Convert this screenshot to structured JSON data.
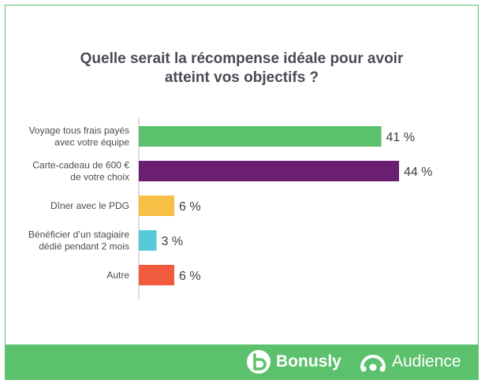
{
  "title_lines": [
    "Quelle serait la récompense idéale pour avoir",
    "atteint vos objectifs ?"
  ],
  "brands": {
    "bonusly": "Bonusly",
    "audience": "Audience"
  },
  "chart_data": {
    "type": "bar",
    "orientation": "horizontal",
    "title": "Quelle serait la récompense idéale pour avoir atteint vos objectifs ?",
    "categories": [
      [
        "Voyage tous frais payés",
        "avec votre équipe"
      ],
      [
        "Carte-cadeau de 600 €",
        "de votre choix"
      ],
      [
        "Dîner avec le PDG"
      ],
      [
        "Bénéficier d’un stagiaire",
        "dédié pendant 2 mois"
      ],
      [
        "Autre"
      ]
    ],
    "values": [
      41,
      44,
      6,
      3,
      6
    ],
    "value_labels": [
      "41 %",
      "44 %",
      "6 %",
      "3 %",
      "6 %"
    ],
    "colors": [
      "#5cc16d",
      "#6a1f71",
      "#f7bf45",
      "#56cbd7",
      "#ef5b3c"
    ],
    "xlim": [
      0,
      44
    ],
    "grid": false,
    "legend": "none"
  }
}
